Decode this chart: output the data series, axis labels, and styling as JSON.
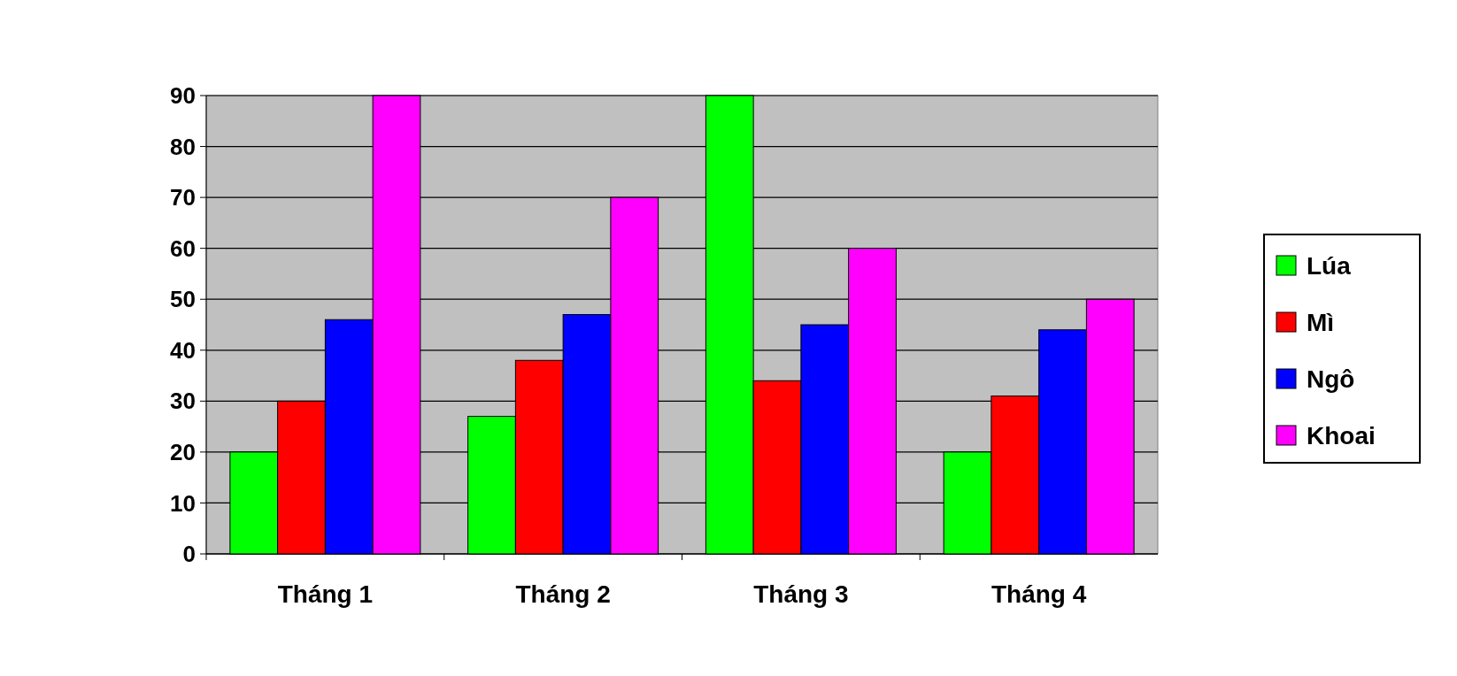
{
  "chart_data": {
    "type": "bar",
    "categories": [
      "Tháng 1",
      "Tháng 2",
      "Tháng 3",
      "Tháng 4"
    ],
    "series": [
      {
        "name": "Lúa",
        "color": "#00ff00",
        "values": [
          20,
          27,
          90,
          20
        ]
      },
      {
        "name": "Mì",
        "color": "#ff0000",
        "values": [
          30,
          38,
          34,
          31
        ]
      },
      {
        "name": "Ngô",
        "color": "#0000ff",
        "values": [
          46,
          47,
          45,
          44
        ]
      },
      {
        "name": "Khoai",
        "color": "#ff00ff",
        "values": [
          90,
          70,
          60,
          50
        ]
      }
    ],
    "ylim": [
      0,
      90
    ],
    "yticks": [
      0,
      10,
      20,
      30,
      40,
      50,
      60,
      70,
      80,
      90
    ],
    "grid": "y",
    "legend": "right"
  }
}
